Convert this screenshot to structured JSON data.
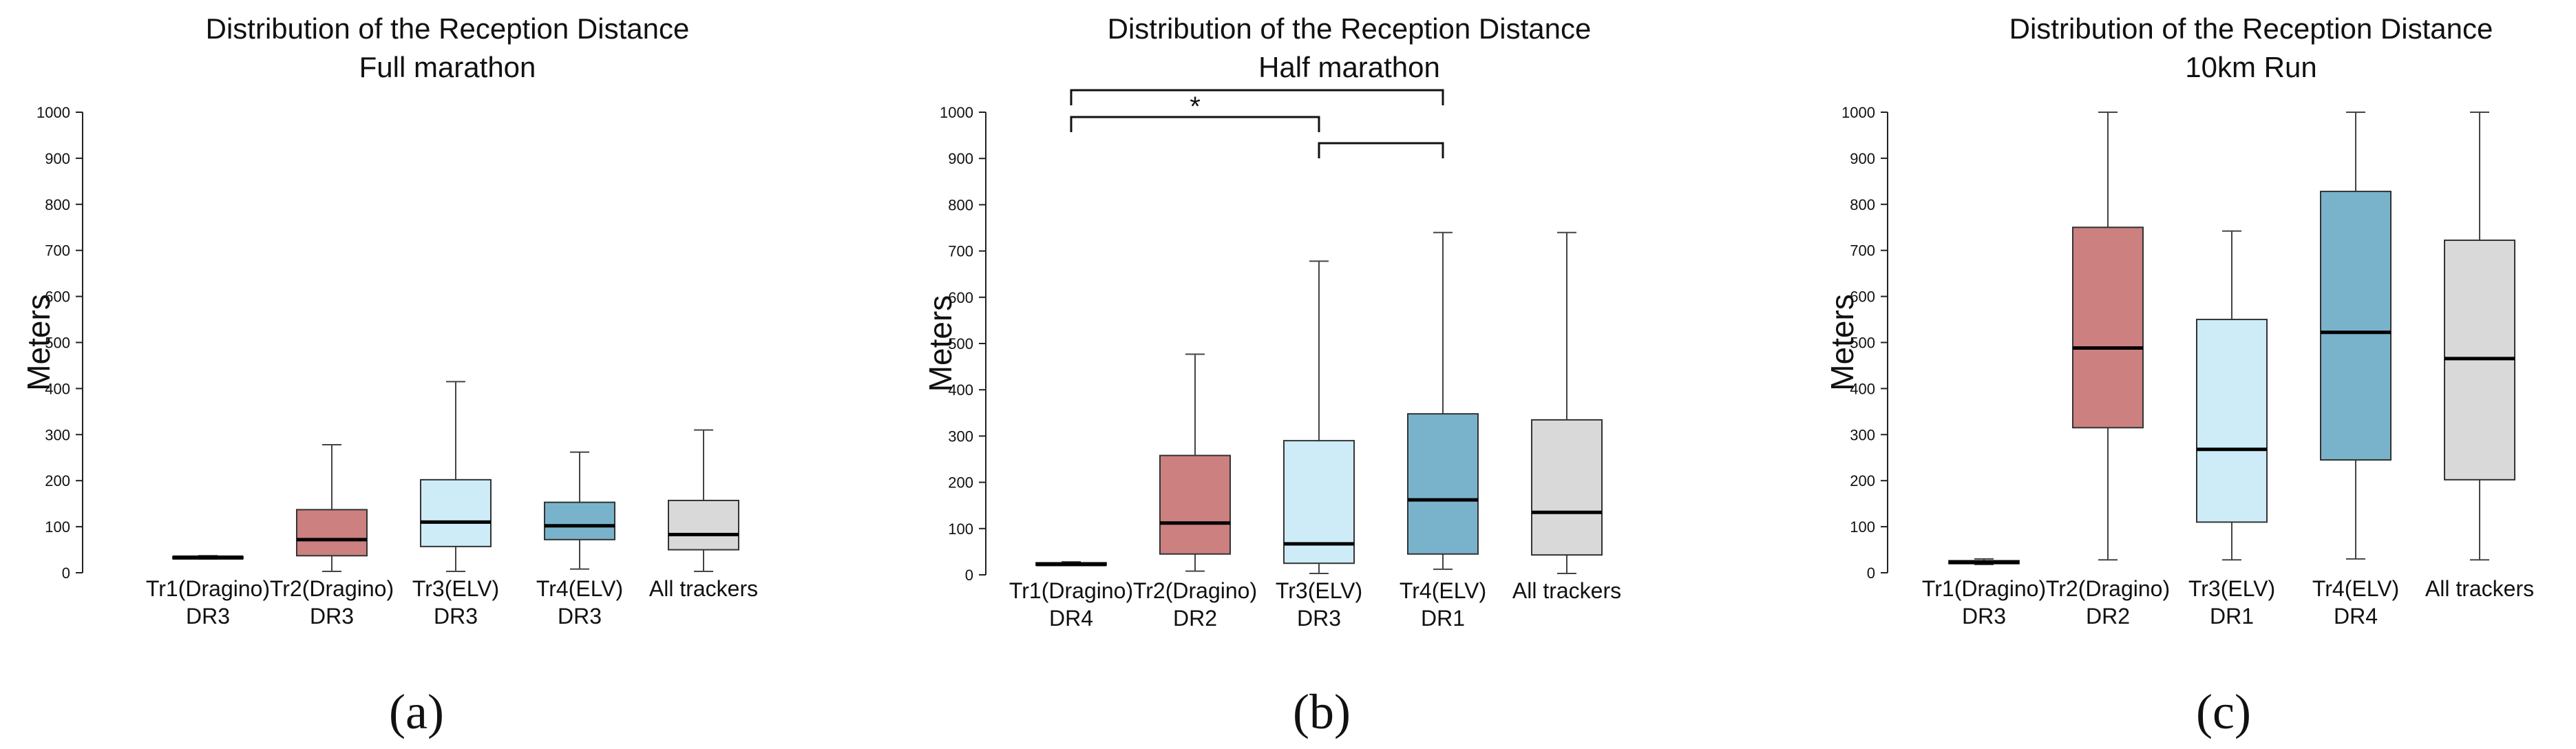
{
  "chart_data": [
    {
      "type": "box",
      "panel_label": "(a)",
      "title": "Distribution of the Reception Distance",
      "subtitle": "Full marathon",
      "ylabel": "Meters",
      "ylim": [
        0,
        1000
      ],
      "yticks": [
        "0",
        "100",
        "200",
        "300",
        "400",
        "500",
        "600",
        "700",
        "800",
        "900",
        "1000"
      ],
      "categories": [
        {
          "line1": "Tr1(Dragino)",
          "line2": "DR3"
        },
        {
          "line1": "Tr2(Dragino)",
          "line2": "DR3"
        },
        {
          "line1": "Tr3(ELV)",
          "line2": "DR3"
        },
        {
          "line1": "Tr4(ELV)",
          "line2": "DR3"
        },
        {
          "line1": "All trackers",
          "line2": ""
        }
      ],
      "boxes": [
        {
          "min": 30,
          "q1": 31,
          "median": 33,
          "q3": 35,
          "max": 37
        },
        {
          "min": 3,
          "q1": 37,
          "median": 72,
          "q3": 137,
          "max": 278
        },
        {
          "min": 3,
          "q1": 57,
          "median": 110,
          "q3": 202,
          "max": 415
        },
        {
          "min": 8,
          "q1": 72,
          "median": 102,
          "q3": 153,
          "max": 262
        },
        {
          "min": 3,
          "q1": 50,
          "median": 83,
          "q3": 157,
          "max": 310
        }
      ],
      "colors": [
        "#2b2b2b",
        "#cc8080",
        "#cdecf8",
        "#79b3cb",
        "#d9d9d9"
      ],
      "significance": []
    },
    {
      "type": "box",
      "panel_label": "(b)",
      "title": "Distribution of the Reception Distance",
      "subtitle": "Half marathon",
      "ylabel": "Meters",
      "ylim": [
        0,
        1000
      ],
      "yticks": [
        "0",
        "100",
        "200",
        "300",
        "400",
        "500",
        "600",
        "700",
        "800",
        "900",
        "1000"
      ],
      "categories": [
        {
          "line1": "Tr1(Dragino)",
          "line2": "DR4"
        },
        {
          "line1": "Tr2(Dragino)",
          "line2": "DR2"
        },
        {
          "line1": "Tr3(ELV)",
          "line2": "DR3"
        },
        {
          "line1": "Tr4(ELV)",
          "line2": "DR1"
        },
        {
          "line1": "All trackers",
          "line2": ""
        }
      ],
      "boxes": [
        {
          "min": 20,
          "q1": 21,
          "median": 23,
          "q3": 26,
          "max": 28
        },
        {
          "min": 8,
          "q1": 45,
          "median": 112,
          "q3": 258,
          "max": 477
        },
        {
          "min": 3,
          "q1": 25,
          "median": 67,
          "q3": 290,
          "max": 678
        },
        {
          "min": 12,
          "q1": 45,
          "median": 162,
          "q3": 348,
          "max": 740
        },
        {
          "min": 3,
          "q1": 43,
          "median": 135,
          "q3": 335,
          "max": 740
        }
      ],
      "colors": [
        "#2b2b2b",
        "#cc8080",
        "#cdecf8",
        "#79b3cb",
        "#d9d9d9"
      ],
      "significance": [
        {
          "from": 0,
          "to": 3,
          "label": ""
        },
        {
          "from": 0,
          "to": 2,
          "label": "*"
        },
        {
          "from": 2,
          "to": 3,
          "label": ""
        }
      ]
    },
    {
      "type": "box",
      "panel_label": "(c)",
      "title": "Distribution of the Reception Distance",
      "subtitle": "10km Run",
      "ylabel": "Meters",
      "ylim": [
        0,
        1000
      ],
      "yticks": [
        "0",
        "100",
        "200",
        "300",
        "400",
        "500",
        "600",
        "700",
        "800",
        "900",
        "1000"
      ],
      "categories": [
        {
          "line1": "Tr1(Dragino)",
          "line2": "DR3"
        },
        {
          "line1": "Tr2(Dragino)",
          "line2": "DR2"
        },
        {
          "line1": "Tr3(ELV)",
          "line2": "DR1"
        },
        {
          "line1": "Tr4(ELV)",
          "line2": "DR4"
        },
        {
          "line1": "All trackers",
          "line2": ""
        }
      ],
      "boxes": [
        {
          "min": 18,
          "q1": 20,
          "median": 23,
          "q3": 26,
          "max": 30
        },
        {
          "min": 28,
          "q1": 315,
          "median": 488,
          "q3": 750,
          "max": 1000
        },
        {
          "min": 28,
          "q1": 110,
          "median": 268,
          "q3": 550,
          "max": 742
        },
        {
          "min": 30,
          "q1": 245,
          "median": 522,
          "q3": 828,
          "max": 1000
        },
        {
          "min": 28,
          "q1": 202,
          "median": 465,
          "q3": 722,
          "max": 1000
        }
      ],
      "colors": [
        "#2b2b2b",
        "#cc8080",
        "#cdecf8",
        "#79b3cb",
        "#d9d9d9"
      ],
      "significance": []
    }
  ]
}
